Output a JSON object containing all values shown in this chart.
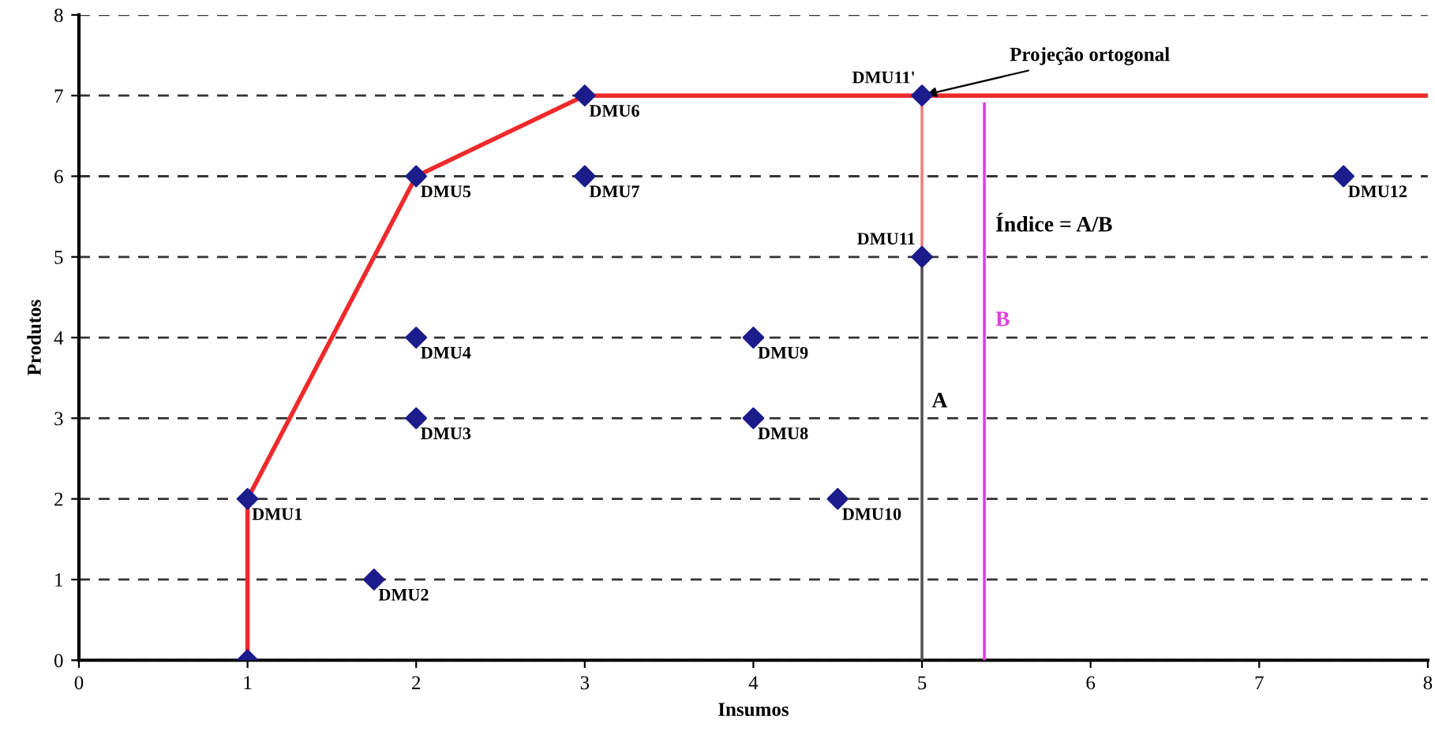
{
  "chart_data": {
    "type": "scatter",
    "xlabel": "Insumos",
    "ylabel": "Produtos",
    "xlim": [
      0,
      8
    ],
    "ylim": [
      0,
      8
    ],
    "xticks": [
      0,
      1,
      2,
      3,
      4,
      5,
      6,
      7,
      8
    ],
    "yticks": [
      0,
      1,
      2,
      3,
      4,
      5,
      6,
      7,
      8
    ],
    "grid": "y",
    "legend": false,
    "marker": "diamond",
    "series": [
      {
        "type": "line",
        "color": "#ee2a2a",
        "x": [
          1,
          1,
          2,
          3,
          8
        ],
        "values": [
          0,
          2,
          6,
          7,
          7
        ],
        "marker": "none"
      },
      {
        "type": "line",
        "color": "#555555",
        "x": [
          5,
          5
        ],
        "values": [
          0,
          5
        ],
        "marker": "none"
      },
      {
        "type": "line",
        "color": "#f08080",
        "x": [
          5,
          5
        ],
        "values": [
          5,
          7
        ],
        "marker": "none"
      },
      {
        "type": "line",
        "color": "#e040e0",
        "x": [
          5.37,
          5.37
        ],
        "values": [
          0,
          6.9
        ],
        "marker": "none"
      },
      {
        "color": "#1c1c8c",
        "x": [
          1,
          1,
          1.75,
          2,
          2,
          2,
          3,
          3,
          4,
          4,
          4.5,
          5,
          5,
          7.5
        ],
        "values": [
          0,
          2,
          1,
          3,
          4,
          6,
          7,
          6,
          3,
          4,
          2,
          5,
          7,
          6
        ],
        "value_labels": [
          null,
          "DMU1",
          "DMU2",
          "DMU3",
          "DMU4",
          "DMU5",
          "DMU6",
          "DMU7",
          "DMU8",
          "DMU9",
          "DMU10",
          "DMU11",
          "DMU11'",
          "DMU12"
        ]
      }
    ],
    "annotations": [
      {
        "text": "Projeção ortogonal",
        "x": 5,
        "y": 7
      },
      "Índice = A/B",
      "A",
      "B"
    ]
  }
}
